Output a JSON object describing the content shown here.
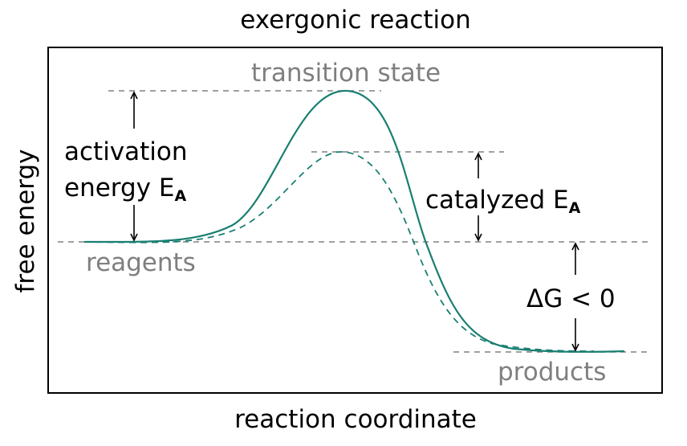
{
  "title": "exergonic reaction",
  "xlabel": "reaction coordinate",
  "ylabel": "free energy",
  "labels": {
    "transition_state": "transition state",
    "reagents": "reagents",
    "products": "products",
    "activation_line1": "activation",
    "activation_line2": "energy E",
    "activation_sub": "A",
    "catalyzed": "catalyzed E",
    "catalyzed_sub": "A",
    "delta_g": "ΔG < 0"
  },
  "colors": {
    "curve": "#1a7f72",
    "guide": "#808080",
    "text_gray": "#7f7f7f",
    "text": "#000000"
  }
}
